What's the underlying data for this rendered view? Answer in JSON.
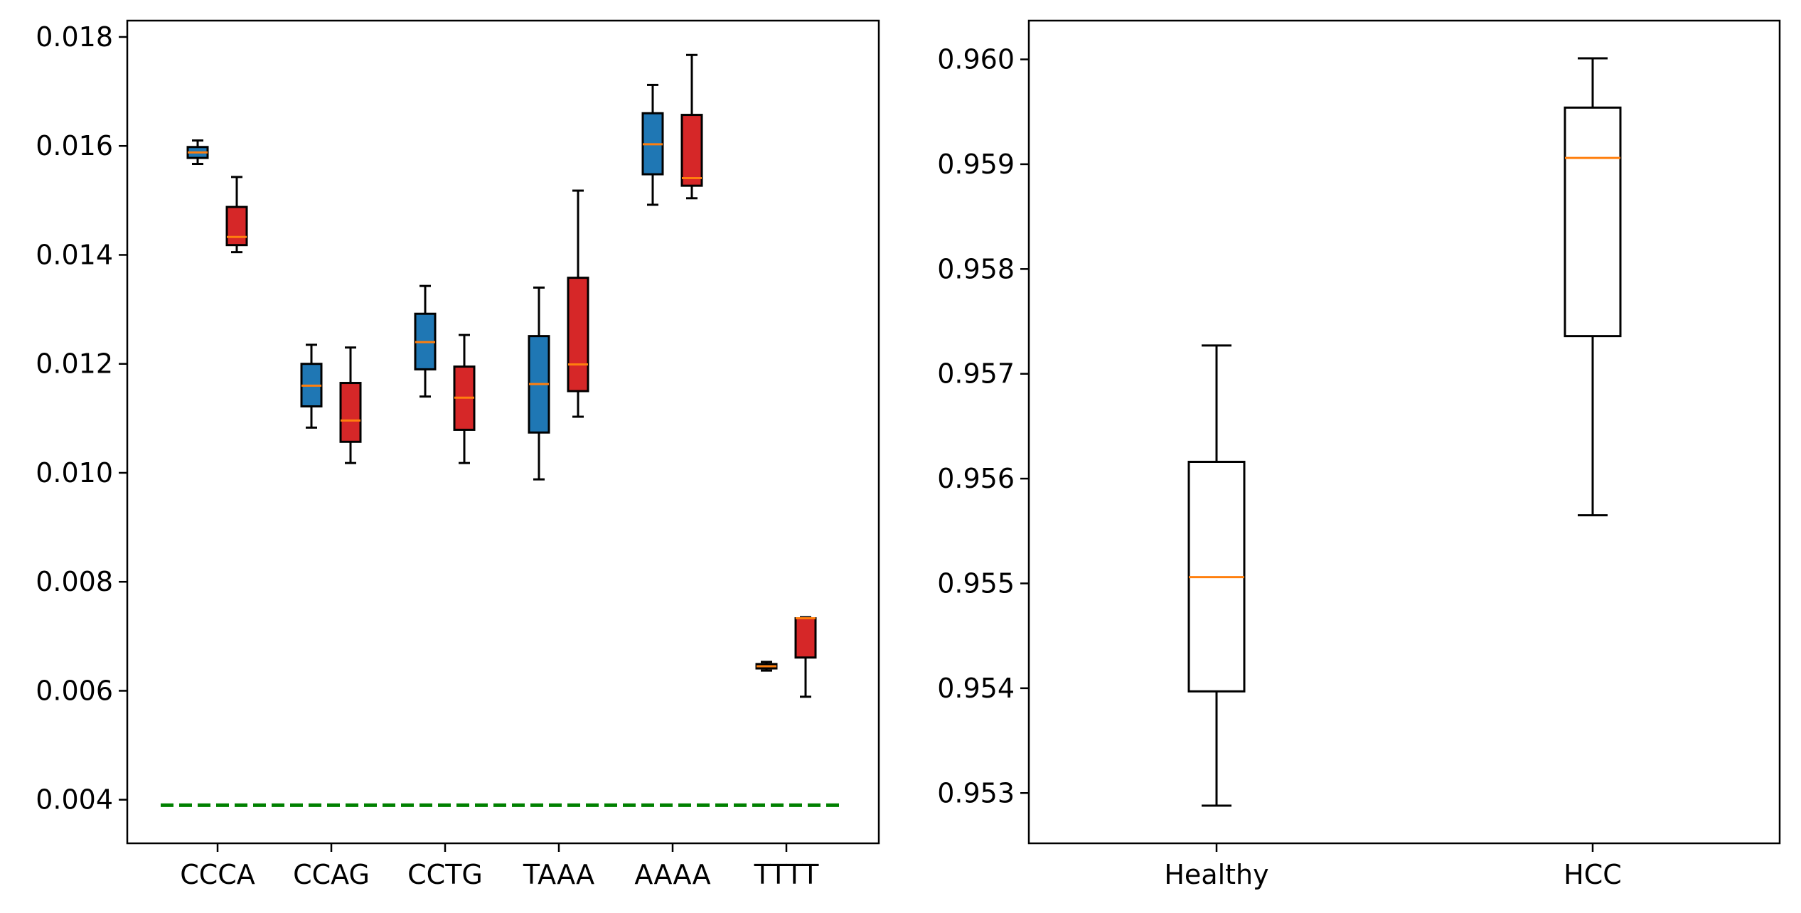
{
  "chart_data": [
    {
      "type": "box",
      "categories": [
        "CCCA",
        "CCAG",
        "CCTG",
        "TAAA",
        "AAAA",
        "TTTT"
      ],
      "yticks": [
        "0.004",
        "0.006",
        "0.008",
        "0.010",
        "0.012",
        "0.014",
        "0.016",
        "0.018"
      ],
      "ylim": [
        0.0032,
        0.0183
      ],
      "reference_line": {
        "y": 0.0039,
        "color": "#008000",
        "style": "dashed"
      },
      "series": [
        {
          "color": "#1f77b4",
          "boxes": [
            {
              "whislo": 0.01567,
              "q1": 0.01578,
              "med": 0.01588,
              "q3": 0.01598,
              "whishi": 0.0161
            },
            {
              "whislo": 0.01083,
              "q1": 0.01122,
              "med": 0.0116,
              "q3": 0.012,
              "whishi": 0.01235
            },
            {
              "whislo": 0.0114,
              "q1": 0.0119,
              "med": 0.0124,
              "q3": 0.01292,
              "whishi": 0.01343
            },
            {
              "whislo": 0.00988,
              "q1": 0.01074,
              "med": 0.01163,
              "q3": 0.01251,
              "whishi": 0.0134
            },
            {
              "whislo": 0.01492,
              "q1": 0.01548,
              "med": 0.01603,
              "q3": 0.0166,
              "whishi": 0.01712
            },
            {
              "whislo": 0.00637,
              "q1": 0.00641,
              "med": 0.00645,
              "q3": 0.00649,
              "whishi": 0.00653
            }
          ]
        },
        {
          "color": "#d62728",
          "boxes": [
            {
              "whislo": 0.01405,
              "q1": 0.01418,
              "med": 0.01433,
              "q3": 0.01488,
              "whishi": 0.01543
            },
            {
              "whislo": 0.01018,
              "q1": 0.01057,
              "med": 0.01096,
              "q3": 0.01165,
              "whishi": 0.0123
            },
            {
              "whislo": 0.01018,
              "q1": 0.01079,
              "med": 0.01138,
              "q3": 0.01195,
              "whishi": 0.01253
            },
            {
              "whislo": 0.01103,
              "q1": 0.0115,
              "med": 0.01199,
              "q3": 0.01358,
              "whishi": 0.01518
            },
            {
              "whislo": 0.01504,
              "q1": 0.01527,
              "med": 0.01541,
              "q3": 0.01657,
              "whishi": 0.01767
            },
            {
              "whislo": 0.00589,
              "q1": 0.00661,
              "med": 0.00733,
              "q3": 0.00733,
              "whishi": 0.00735
            }
          ]
        }
      ]
    },
    {
      "type": "box",
      "categories": [
        "Healthy",
        "HCC"
      ],
      "yticks": [
        "0.953",
        "0.954",
        "0.955",
        "0.956",
        "0.957",
        "0.958",
        "0.959",
        "0.960"
      ],
      "ylim": [
        0.95252,
        0.96037
      ],
      "boxes": [
        {
          "whislo": 0.95288,
          "q1": 0.95397,
          "med": 0.95506,
          "q3": 0.95616,
          "whishi": 0.95727
        },
        {
          "whislo": 0.95565,
          "q1": 0.95736,
          "med": 0.95906,
          "q3": 0.95954,
          "whishi": 0.96001
        }
      ],
      "box_color": "#ffffff",
      "median_color": "#ff7f0e"
    }
  ]
}
